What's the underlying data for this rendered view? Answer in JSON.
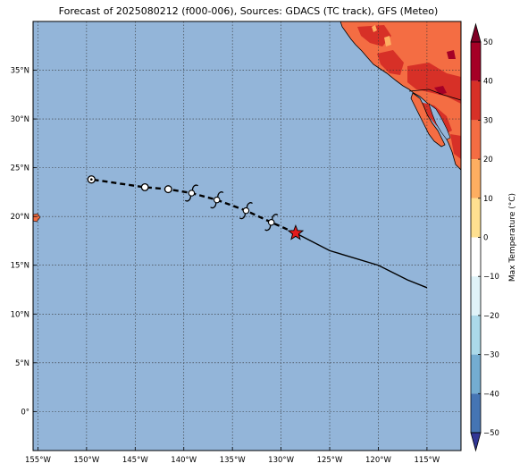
{
  "title": "Forecast of 2025080212 (f000-006), Sources: GDACS (TC track), GFS (Meteo)",
  "map": {
    "lon_range": [
      -155.5,
      -111.5
    ],
    "lat_range": [
      -4,
      40
    ],
    "lon_ticks": [
      {
        "value": -155,
        "label": "155°W"
      },
      {
        "value": -150,
        "label": "150°W"
      },
      {
        "value": -145,
        "label": "145°W"
      },
      {
        "value": -140,
        "label": "140°W"
      },
      {
        "value": -135,
        "label": "135°W"
      },
      {
        "value": -130,
        "label": "130°W"
      },
      {
        "value": -125,
        "label": "125°W"
      },
      {
        "value": -120,
        "label": "120°W"
      },
      {
        "value": -115,
        "label": "115°W"
      }
    ],
    "lat_ticks": [
      {
        "value": 0,
        "label": "0°"
      },
      {
        "value": 5,
        "label": "5°N"
      },
      {
        "value": 10,
        "label": "10°N"
      },
      {
        "value": 15,
        "label": "15°N"
      },
      {
        "value": 20,
        "label": "20°N"
      },
      {
        "value": 25,
        "label": "25°N"
      },
      {
        "value": 30,
        "label": "30°N"
      },
      {
        "value": 35,
        "label": "35°N"
      }
    ],
    "ocean_color": "#93b5d9",
    "grid": true
  },
  "track": {
    "current_position": {
      "lon": -128.5,
      "lat": 18.3
    },
    "past_track": [
      [
        -128.5,
        18.3
      ],
      [
        -125.0,
        16.5
      ],
      [
        -120.0,
        15.0
      ],
      [
        -117.0,
        13.5
      ],
      [
        -115.0,
        12.7
      ]
    ],
    "forecast_points": [
      {
        "lon": -131.0,
        "lat": 19.4,
        "symbol": "hurricane"
      },
      {
        "lon": -133.6,
        "lat": 20.6,
        "symbol": "hurricane"
      },
      {
        "lon": -136.6,
        "lat": 21.7,
        "symbol": "hurricane"
      },
      {
        "lon": -139.2,
        "lat": 22.4,
        "symbol": "hurricane"
      },
      {
        "lon": -141.6,
        "lat": 22.8,
        "symbol": "circle"
      },
      {
        "lon": -144.0,
        "lat": 23.0,
        "symbol": "circle"
      },
      {
        "lon": -149.5,
        "lat": 23.8,
        "symbol": "dotted-circle"
      }
    ],
    "star_color": "#e31a1c"
  },
  "colorbar": {
    "label": "Max Temperature (°C)",
    "min": -50,
    "max": 50,
    "extend": "both",
    "ticks": [
      50,
      40,
      30,
      20,
      10,
      0,
      -10,
      -20,
      -30,
      -40,
      -50
    ],
    "bins": [
      {
        "from": 40,
        "to": 50,
        "color": "#a50026"
      },
      {
        "from": 30,
        "to": 40,
        "color": "#d73027"
      },
      {
        "from": 20,
        "to": 30,
        "color": "#f46d43"
      },
      {
        "from": 10,
        "to": 20,
        "color": "#fdae61"
      },
      {
        "from": 0,
        "to": 10,
        "color": "#fee090"
      },
      {
        "from": -10,
        "to": 0,
        "color": "#ffffff"
      },
      {
        "from": -20,
        "to": -10,
        "color": "#e0f3f8"
      },
      {
        "from": -30,
        "to": -20,
        "color": "#abd9e9"
      },
      {
        "from": -40,
        "to": -30,
        "color": "#74add1"
      },
      {
        "from": -50,
        "to": -40,
        "color": "#4575b4"
      }
    ],
    "over_color": "#7f0026",
    "under_color": "#313695"
  }
}
